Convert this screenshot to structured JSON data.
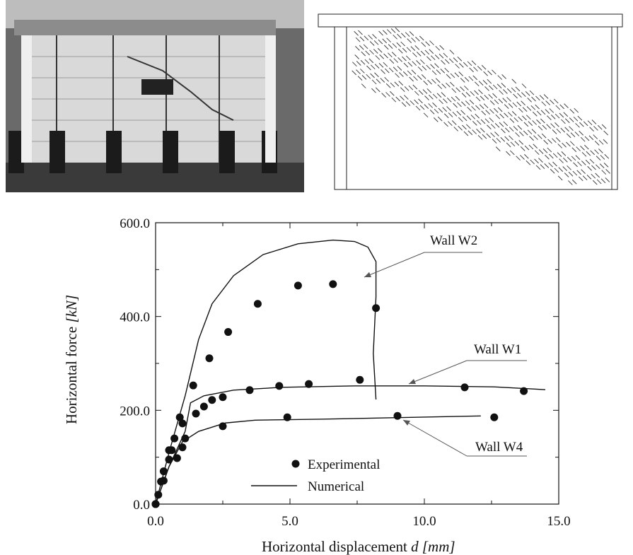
{
  "chart_data": {
    "type": "line",
    "xlabel": "Horizontal displacement",
    "xlabel_unit": "d [mm]",
    "ylabel": "Horizontal force",
    "ylabel_unit": "[kN]",
    "xlim": [
      0,
      15
    ],
    "ylim": [
      0,
      600
    ],
    "xticks": [
      {
        "value": 0,
        "label": "0.0"
      },
      {
        "value": 5,
        "label": "5.0"
      },
      {
        "value": 10,
        "label": "10.0"
      },
      {
        "value": 15,
        "label": "15.0"
      }
    ],
    "yticks": [
      {
        "value": 0,
        "label": "0.0"
      },
      {
        "value": 200,
        "label": "200.0"
      },
      {
        "value": 400,
        "label": "400.0"
      },
      {
        "value": 600,
        "label": "600.0"
      }
    ],
    "xminorticks": [
      2.5,
      7.5,
      12.5
    ],
    "yminorticks": [
      100,
      300,
      500
    ],
    "color": "#111111",
    "series": [
      {
        "name": "Experimental",
        "kind": "scatter",
        "groups": [
          {
            "x": [
              0,
              0.1,
              0.3,
              0.6,
              0.9,
              1.4,
              2.0,
              2.7,
              3.8,
              5.3,
              6.6,
              8.2
            ],
            "y": [
              0,
              20,
              70,
              115,
              185,
              253,
              311,
              367,
              427,
              466,
              469,
              418
            ]
          },
          {
            "x": [
              0,
              0.3,
              0.5,
              0.7,
              1.0,
              1.5,
              1.8,
              2.1,
              2.5,
              3.5,
              4.6,
              5.7,
              7.6,
              11.5,
              13.7
            ],
            "y": [
              0,
              50,
              115,
              140,
              172,
              193,
              208,
              222,
              228,
              243,
              252,
              256,
              265,
              249,
              241
            ]
          },
          {
            "x": [
              0,
              0.2,
              0.5,
              0.8,
              1.0,
              1.1,
              2.5,
              4.9,
              9.0,
              12.6
            ],
            "y": [
              0,
              48,
              95,
              98,
              121,
              140,
              166,
              185,
              188,
              185
            ]
          }
        ]
      },
      {
        "name": "Numerical",
        "kind": "line",
        "groups": [
          {
            "x": [
              0,
              0.5,
              1.1,
              1.6,
              2.1,
              2.9,
              4.0,
              5.3,
              6.6,
              7.4,
              7.9,
              8.2,
              8.2,
              8.1,
              8.2
            ],
            "y": [
              0,
              110,
              231,
              351,
              427,
              487,
              532,
              555,
              563,
              560,
              548,
              517,
              442,
              321,
              223
            ]
          },
          {
            "x": [
              0,
              0.5,
              1.1,
              1.3,
              1.8,
              2.9,
              4.7,
              7.4,
              10.0,
              12.6,
              14.5
            ],
            "y": [
              0,
              80,
              155,
              216,
              231,
              243,
              249,
              252,
              252,
              250,
              244
            ]
          },
          {
            "x": [
              0,
              0.5,
              1.0,
              1.6,
              2.6,
              3.7,
              6.1,
              8.7,
              12.1
            ],
            "y": [
              0,
              80,
              133,
              155,
              173,
              179,
              181,
              184,
              188
            ]
          }
        ]
      }
    ],
    "annotations": [
      "Wall W2",
      "Wall W1",
      "Wall W4"
    ]
  }
}
